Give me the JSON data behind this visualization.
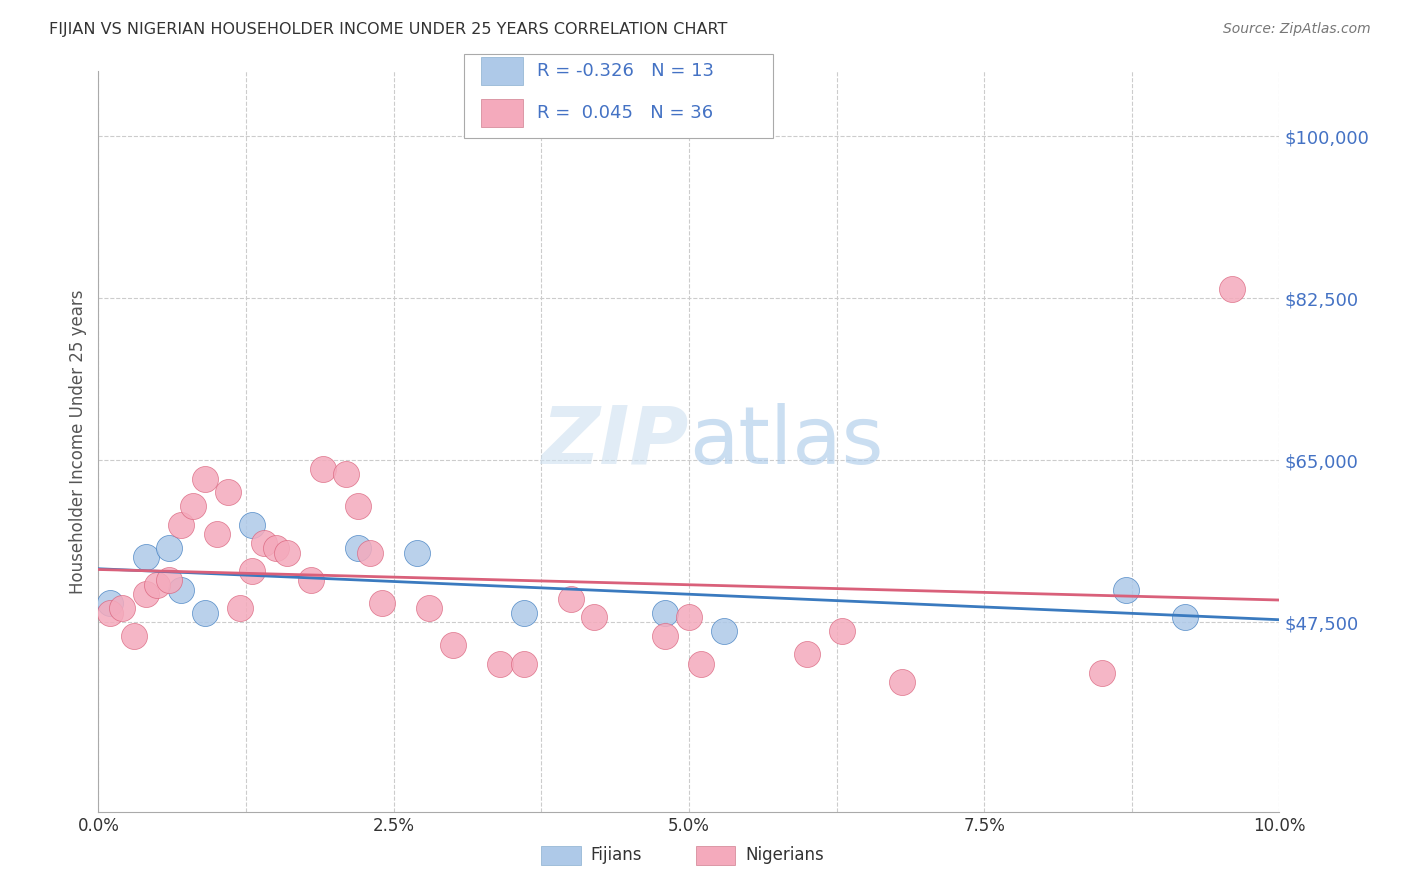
{
  "title": "FIJIAN VS NIGERIAN HOUSEHOLDER INCOME UNDER 25 YEARS CORRELATION CHART",
  "source": "Source: ZipAtlas.com",
  "ylabel": "Householder Income Under 25 years",
  "watermark": "ZIPatlas",
  "fijian_color": "#aec9e8",
  "nigerian_color": "#f4aabc",
  "fijian_line_color": "#3a7abf",
  "nigerian_line_color": "#d9607a",
  "legend_fijian_R": "-0.326",
  "legend_fijian_N": "13",
  "legend_nigerian_R": "0.045",
  "legend_nigerian_N": "36",
  "xlim": [
    0.0,
    0.1
  ],
  "ylim": [
    27000,
    107000
  ],
  "ytick_labels": [
    "$47,500",
    "$65,000",
    "$82,500",
    "$100,000"
  ],
  "ytick_values": [
    47500,
    65000,
    82500,
    100000
  ],
  "xtick_labels": [
    "0.0%",
    "",
    "2.5%",
    "",
    "5.0%",
    "",
    "7.5%",
    "",
    "10.0%"
  ],
  "xtick_values": [
    0.0,
    0.0125,
    0.025,
    0.0375,
    0.05,
    0.0625,
    0.075,
    0.0875,
    0.1
  ],
  "fijian_x": [
    0.001,
    0.004,
    0.006,
    0.007,
    0.009,
    0.013,
    0.022,
    0.027,
    0.036,
    0.048,
    0.053,
    0.087,
    0.092
  ],
  "fijian_y": [
    49500,
    54500,
    55500,
    51000,
    48500,
    58000,
    55500,
    55000,
    48500,
    48500,
    46500,
    51000,
    48000
  ],
  "nigerian_x": [
    0.001,
    0.002,
    0.003,
    0.004,
    0.005,
    0.006,
    0.007,
    0.008,
    0.009,
    0.01,
    0.011,
    0.012,
    0.013,
    0.014,
    0.015,
    0.016,
    0.018,
    0.019,
    0.021,
    0.022,
    0.023,
    0.024,
    0.028,
    0.03,
    0.034,
    0.036,
    0.04,
    0.042,
    0.048,
    0.05,
    0.051,
    0.06,
    0.063,
    0.068,
    0.085,
    0.096
  ],
  "nigerian_y": [
    48500,
    49000,
    46000,
    50500,
    51500,
    52000,
    58000,
    60000,
    63000,
    57000,
    61500,
    49000,
    53000,
    56000,
    55500,
    55000,
    52000,
    64000,
    63500,
    60000,
    55000,
    49500,
    49000,
    45000,
    43000,
    43000,
    50000,
    48000,
    46000,
    48000,
    43000,
    44000,
    46500,
    41000,
    42000,
    83500
  ],
  "background_color": "#ffffff",
  "grid_color": "#cccccc",
  "title_color": "#333333",
  "axis_label_color": "#555555",
  "ytick_color": "#4472c4",
  "source_color": "#777777"
}
